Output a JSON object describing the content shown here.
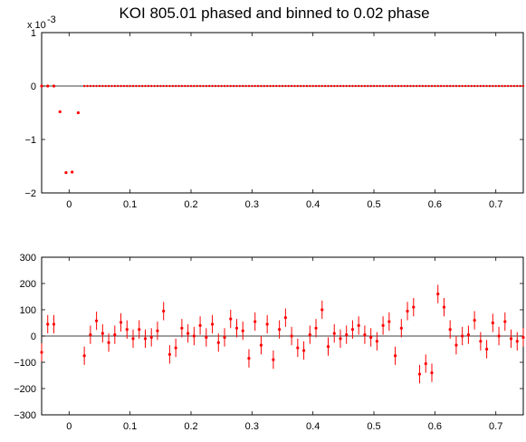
{
  "title": "KOI 805.01 phased and binned to 0.02 phase",
  "chart_data": [
    {
      "type": "scatter",
      "name": "top",
      "xlim": [
        -0.045,
        0.745
      ],
      "ylim": [
        -2,
        1
      ],
      "y_multiplier_label": "x 10",
      "y_exponent": "-3",
      "xticks": [
        0,
        0.1,
        0.2,
        0.3,
        0.4,
        0.5,
        0.6,
        0.7
      ],
      "xtick_labels": [
        "0",
        "0.1",
        "0.2",
        "0.3",
        "0.4",
        "0.5",
        "0.6",
        "0.7"
      ],
      "yticks": [
        1,
        0,
        -1,
        -2
      ],
      "ytick_labels": [
        "1",
        "0",
        "−1",
        "−2"
      ],
      "zero_line": true,
      "color": "#ff0000",
      "points": [
        {
          "x": -0.045,
          "y": 0.0
        },
        {
          "x": -0.035,
          "y": 0.0
        },
        {
          "x": -0.025,
          "y": 0.0
        },
        {
          "x": -0.015,
          "y": -0.48
        },
        {
          "x": -0.005,
          "y": -1.62
        },
        {
          "x": 0.005,
          "y": -1.61
        },
        {
          "x": 0.015,
          "y": -0.5
        }
      ],
      "dense_series": {
        "x_start": 0.025,
        "x_step": 0.005,
        "x_end": 0.745,
        "y": 0.0
      }
    },
    {
      "type": "scatter",
      "name": "bottom",
      "xlim": [
        -0.045,
        0.745
      ],
      "ylim": [
        -300,
        300
      ],
      "xticks": [
        0,
        0.1,
        0.2,
        0.3,
        0.4,
        0.5,
        0.6,
        0.7
      ],
      "xtick_labels": [
        "0",
        "0.1",
        "0.2",
        "0.3",
        "0.4",
        "0.5",
        "0.6",
        "0.7"
      ],
      "yticks": [
        300,
        200,
        100,
        0,
        -100,
        -200,
        -300
      ],
      "ytick_labels": [
        "300",
        "200",
        "100",
        "0",
        "−100",
        "−200",
        "−300"
      ],
      "zero_line": true,
      "color": "#ff0000",
      "points": [
        {
          "x": -0.045,
          "y": -62,
          "err": 35
        },
        {
          "x": -0.035,
          "y": 45,
          "err": 35
        },
        {
          "x": -0.025,
          "y": 45,
          "err": 35
        },
        {
          "x": 0.025,
          "y": -75,
          "err": 35
        },
        {
          "x": 0.035,
          "y": 5,
          "err": 35
        },
        {
          "x": 0.045,
          "y": 58,
          "err": 35
        },
        {
          "x": 0.055,
          "y": 10,
          "err": 35
        },
        {
          "x": 0.065,
          "y": -25,
          "err": 35
        },
        {
          "x": 0.075,
          "y": 5,
          "err": 35
        },
        {
          "x": 0.085,
          "y": 52,
          "err": 35
        },
        {
          "x": 0.095,
          "y": 25,
          "err": 35
        },
        {
          "x": 0.105,
          "y": -10,
          "err": 35
        },
        {
          "x": 0.115,
          "y": 25,
          "err": 35
        },
        {
          "x": 0.125,
          "y": -10,
          "err": 35
        },
        {
          "x": 0.135,
          "y": -5,
          "err": 35
        },
        {
          "x": 0.145,
          "y": 20,
          "err": 35
        },
        {
          "x": 0.155,
          "y": 95,
          "err": 35
        },
        {
          "x": 0.165,
          "y": -70,
          "err": 35
        },
        {
          "x": 0.175,
          "y": -45,
          "err": 35
        },
        {
          "x": 0.185,
          "y": 30,
          "err": 35
        },
        {
          "x": 0.195,
          "y": 10,
          "err": 35
        },
        {
          "x": 0.205,
          "y": 0,
          "err": 35
        },
        {
          "x": 0.215,
          "y": 40,
          "err": 35
        },
        {
          "x": 0.225,
          "y": -5,
          "err": 35
        },
        {
          "x": 0.235,
          "y": 45,
          "err": 35
        },
        {
          "x": 0.245,
          "y": -25,
          "err": 35
        },
        {
          "x": 0.255,
          "y": -5,
          "err": 35
        },
        {
          "x": 0.265,
          "y": 65,
          "err": 35
        },
        {
          "x": 0.275,
          "y": 30,
          "err": 35
        },
        {
          "x": 0.285,
          "y": 20,
          "err": 35
        },
        {
          "x": 0.295,
          "y": -85,
          "err": 35
        },
        {
          "x": 0.305,
          "y": 55,
          "err": 35
        },
        {
          "x": 0.315,
          "y": -35,
          "err": 35
        },
        {
          "x": 0.325,
          "y": 45,
          "err": 35
        },
        {
          "x": 0.335,
          "y": -90,
          "err": 35
        },
        {
          "x": 0.345,
          "y": 25,
          "err": 35
        },
        {
          "x": 0.355,
          "y": 70,
          "err": 35
        },
        {
          "x": 0.365,
          "y": 0,
          "err": 35
        },
        {
          "x": 0.375,
          "y": -45,
          "err": 35
        },
        {
          "x": 0.385,
          "y": -55,
          "err": 35
        },
        {
          "x": 0.395,
          "y": 5,
          "err": 35
        },
        {
          "x": 0.405,
          "y": 30,
          "err": 35
        },
        {
          "x": 0.415,
          "y": 100,
          "err": 35
        },
        {
          "x": 0.425,
          "y": -40,
          "err": 35
        },
        {
          "x": 0.435,
          "y": 10,
          "err": 35
        },
        {
          "x": 0.445,
          "y": -10,
          "err": 35
        },
        {
          "x": 0.455,
          "y": 5,
          "err": 35
        },
        {
          "x": 0.465,
          "y": 25,
          "err": 35
        },
        {
          "x": 0.475,
          "y": 40,
          "err": 35
        },
        {
          "x": 0.485,
          "y": 5,
          "err": 35
        },
        {
          "x": 0.495,
          "y": -5,
          "err": 35
        },
        {
          "x": 0.505,
          "y": -20,
          "err": 35
        },
        {
          "x": 0.515,
          "y": 40,
          "err": 35
        },
        {
          "x": 0.525,
          "y": 55,
          "err": 35
        },
        {
          "x": 0.535,
          "y": -75,
          "err": 35
        },
        {
          "x": 0.545,
          "y": 30,
          "err": 35
        },
        {
          "x": 0.555,
          "y": 95,
          "err": 35
        },
        {
          "x": 0.565,
          "y": 110,
          "err": 35
        },
        {
          "x": 0.575,
          "y": -145,
          "err": 35
        },
        {
          "x": 0.585,
          "y": -105,
          "err": 35
        },
        {
          "x": 0.595,
          "y": -140,
          "err": 35
        },
        {
          "x": 0.605,
          "y": 160,
          "err": 35
        },
        {
          "x": 0.615,
          "y": 110,
          "err": 35
        },
        {
          "x": 0.625,
          "y": 25,
          "err": 35
        },
        {
          "x": 0.635,
          "y": -35,
          "err": 35
        },
        {
          "x": 0.645,
          "y": 0,
          "err": 35
        },
        {
          "x": 0.655,
          "y": 5,
          "err": 35
        },
        {
          "x": 0.665,
          "y": 60,
          "err": 35
        },
        {
          "x": 0.675,
          "y": -20,
          "err": 35
        },
        {
          "x": 0.685,
          "y": -50,
          "err": 35
        },
        {
          "x": 0.695,
          "y": 50,
          "err": 35
        },
        {
          "x": 0.705,
          "y": 0,
          "err": 35
        },
        {
          "x": 0.715,
          "y": 55,
          "err": 35
        },
        {
          "x": 0.725,
          "y": -10,
          "err": 35
        },
        {
          "x": 0.735,
          "y": -20,
          "err": 35
        },
        {
          "x": 0.745,
          "y": -5,
          "err": 35
        }
      ]
    }
  ]
}
